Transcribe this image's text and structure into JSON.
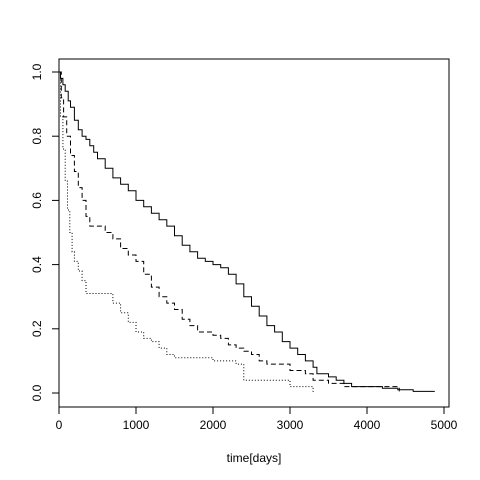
{
  "chart_data": {
    "type": "line",
    "title": "",
    "xlabel": "time[days]",
    "ylabel": "",
    "xlim": [
      0,
      5000
    ],
    "ylim": [
      0,
      1.0
    ],
    "xticks": [
      0,
      1000,
      2000,
      3000,
      4000,
      5000
    ],
    "yticks": [
      0.0,
      0.2,
      0.4,
      0.6,
      0.8,
      1.0
    ],
    "xtick_labels": [
      "0",
      "1000",
      "2000",
      "3000",
      "4000",
      "5000"
    ],
    "ytick_labels": [
      "0.0",
      "0.2",
      "0.4",
      "0.6",
      "0.8",
      "1.0"
    ],
    "grid": false,
    "legend": null,
    "series": [
      {
        "name": "solid",
        "style": "solid",
        "color": "#000000",
        "points": [
          [
            0,
            1.0
          ],
          [
            20,
            0.98
          ],
          [
            50,
            0.96
          ],
          [
            80,
            0.94
          ],
          [
            120,
            0.91
          ],
          [
            150,
            0.89
          ],
          [
            200,
            0.85
          ],
          [
            250,
            0.82
          ],
          [
            300,
            0.8
          ],
          [
            350,
            0.79
          ],
          [
            400,
            0.77
          ],
          [
            450,
            0.75
          ],
          [
            500,
            0.73
          ],
          [
            600,
            0.7
          ],
          [
            700,
            0.67
          ],
          [
            800,
            0.65
          ],
          [
            900,
            0.63
          ],
          [
            1000,
            0.6
          ],
          [
            1100,
            0.58
          ],
          [
            1200,
            0.56
          ],
          [
            1300,
            0.54
          ],
          [
            1400,
            0.52
          ],
          [
            1500,
            0.49
          ],
          [
            1600,
            0.46
          ],
          [
            1700,
            0.44
          ],
          [
            1800,
            0.42
          ],
          [
            1900,
            0.41
          ],
          [
            2000,
            0.4
          ],
          [
            2100,
            0.39
          ],
          [
            2200,
            0.37
          ],
          [
            2300,
            0.34
          ],
          [
            2400,
            0.3
          ],
          [
            2500,
            0.27
          ],
          [
            2600,
            0.24
          ],
          [
            2700,
            0.21
          ],
          [
            2800,
            0.19
          ],
          [
            2900,
            0.16
          ],
          [
            3000,
            0.14
          ],
          [
            3100,
            0.12
          ],
          [
            3200,
            0.1
          ],
          [
            3300,
            0.08
          ],
          [
            3350,
            0.06
          ],
          [
            3500,
            0.05
          ],
          [
            3600,
            0.04
          ],
          [
            3700,
            0.03
          ],
          [
            3800,
            0.02
          ],
          [
            3900,
            0.02
          ],
          [
            4000,
            0.02
          ],
          [
            4200,
            0.015
          ],
          [
            4400,
            0.01
          ],
          [
            4600,
            0.005
          ],
          [
            4880,
            0.005
          ]
        ]
      },
      {
        "name": "dashed",
        "style": "dashed",
        "color": "#000000",
        "points": [
          [
            0,
            1.0
          ],
          [
            30,
            0.92
          ],
          [
            60,
            0.86
          ],
          [
            100,
            0.8
          ],
          [
            150,
            0.74
          ],
          [
            200,
            0.69
          ],
          [
            250,
            0.64
          ],
          [
            300,
            0.6
          ],
          [
            350,
            0.55
          ],
          [
            400,
            0.52
          ],
          [
            500,
            0.52
          ],
          [
            600,
            0.5
          ],
          [
            700,
            0.48
          ],
          [
            800,
            0.45
          ],
          [
            900,
            0.43
          ],
          [
            1000,
            0.41
          ],
          [
            1100,
            0.37
          ],
          [
            1200,
            0.33
          ],
          [
            1300,
            0.3
          ],
          [
            1400,
            0.28
          ],
          [
            1500,
            0.26
          ],
          [
            1600,
            0.23
          ],
          [
            1700,
            0.21
          ],
          [
            1800,
            0.19
          ],
          [
            2000,
            0.18
          ],
          [
            2100,
            0.17
          ],
          [
            2200,
            0.15
          ],
          [
            2300,
            0.14
          ],
          [
            2400,
            0.13
          ],
          [
            2500,
            0.12
          ],
          [
            2600,
            0.1
          ],
          [
            2700,
            0.09
          ],
          [
            3000,
            0.07
          ],
          [
            3200,
            0.06
          ],
          [
            3300,
            0.04
          ],
          [
            3500,
            0.03
          ],
          [
            3700,
            0.02
          ],
          [
            3900,
            0.02
          ],
          [
            4100,
            0.02
          ],
          [
            4400,
            0.015
          ],
          [
            4420,
            0.005
          ]
        ]
      },
      {
        "name": "dotted",
        "style": "dotted",
        "color": "#000000",
        "points": [
          [
            0,
            1.0
          ],
          [
            20,
            0.86
          ],
          [
            50,
            0.76
          ],
          [
            80,
            0.66
          ],
          [
            110,
            0.57
          ],
          [
            140,
            0.5
          ],
          [
            170,
            0.44
          ],
          [
            200,
            0.41
          ],
          [
            250,
            0.38
          ],
          [
            300,
            0.35
          ],
          [
            350,
            0.31
          ],
          [
            400,
            0.31
          ],
          [
            600,
            0.31
          ],
          [
            700,
            0.28
          ],
          [
            800,
            0.25
          ],
          [
            900,
            0.22
          ],
          [
            1000,
            0.19
          ],
          [
            1100,
            0.17
          ],
          [
            1200,
            0.16
          ],
          [
            1300,
            0.14
          ],
          [
            1400,
            0.12
          ],
          [
            1500,
            0.11
          ],
          [
            1600,
            0.11
          ],
          [
            1800,
            0.11
          ],
          [
            2000,
            0.1
          ],
          [
            2200,
            0.1
          ],
          [
            2300,
            0.09
          ],
          [
            2400,
            0.04
          ],
          [
            2600,
            0.04
          ],
          [
            2900,
            0.04
          ],
          [
            3000,
            0.02
          ],
          [
            3200,
            0.02
          ],
          [
            3300,
            0.0
          ]
        ]
      }
    ]
  }
}
